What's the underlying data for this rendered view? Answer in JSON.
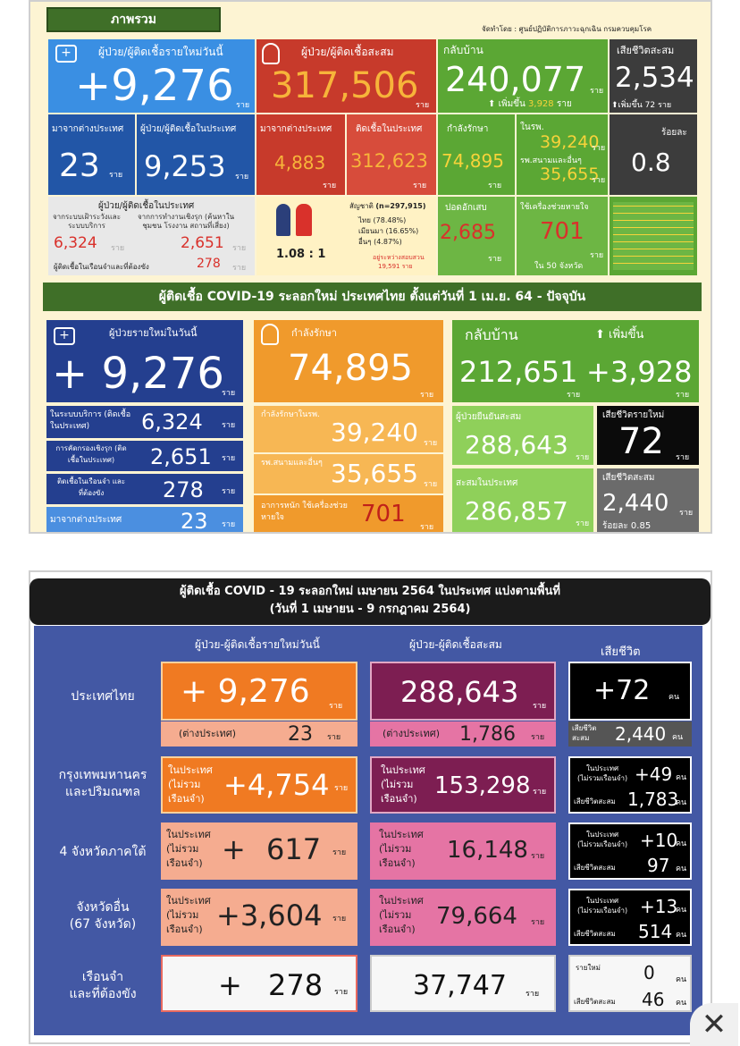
{
  "top": {
    "section_label": "ภาพรวม",
    "credit": "จัดทำโดย : ศูนย์ปฏิบัติการภาวะฉุกเฉิน กรมควบคุมโรค",
    "new_cases": {
      "label": "ผู้ป่วย/ผู้ติดเชื้อรายใหม่วันนี้",
      "value": "+9,276",
      "unit": "ราย"
    },
    "cumulative": {
      "label": "ผู้ป่วย/ผู้ติดเชื้อสะสม",
      "value": "317,506",
      "unit": "ราย"
    },
    "recovered": {
      "label": "กลับบ้าน",
      "value": "240,077",
      "unit": "ราย",
      "increase_label": "เพิ่มขึ้น",
      "increase": "3,928",
      "increase_unit": "ราย"
    },
    "deaths": {
      "label": "เสียชีวิตสะสม",
      "value": "2,534",
      "increase_label": "เพิ่มขึ้น",
      "increase": "72",
      "unit": "ราย"
    },
    "imported_new": {
      "label": "มาจากต่างประเทศ",
      "value": "23",
      "unit": "ราย"
    },
    "local_new": {
      "label": "ผู้ป่วย/ผู้ติดเชื้อในประเทศ",
      "value": "9,253",
      "unit": "ราย"
    },
    "imported_cum": {
      "label": "มาจากต่างประเทศ",
      "value": "4,883",
      "unit": "ราย"
    },
    "local_cum": {
      "label": "ติดเชื้อในประเทศ",
      "value": "312,623",
      "unit": "ราย"
    },
    "treating": {
      "label": "กำลังรักษา",
      "value": "74,895",
      "unit": "ราย"
    },
    "hospital": {
      "label": "ในรพ.",
      "value": "39,240",
      "unit": "ราย",
      "field_label": "รพ.สนามและอื่นๆ",
      "field_value": "35,655",
      "field_unit": "ราย"
    },
    "fatality": {
      "label": "ร้อยละ",
      "value": "0.8"
    },
    "local_detail": {
      "label": "ผู้ป่วย/ผู้ติดเชื้อในประเทศ",
      "sys_label": "จากระบบเฝ้าระวังและระบบบริการ",
      "sys_value": "6,324",
      "active_label": "จากการทำงานเชิงรุก (ค้นหาในชุมชน โรงงาน สถานที่เสี่ยง)",
      "active_value": "2,651",
      "prison_label": "ผู้ติดเชื้อในเรือนจำและที่ต้องขัง",
      "prison_value": "278",
      "unit": "ราย"
    },
    "ratio": {
      "value": "1.08 : 1"
    },
    "nationality": {
      "label": "สัญชาติ",
      "n": "(n=297,915)",
      "thai": "ไทย",
      "thai_pct": "(78.48%)",
      "myanmar": "เมียนมา",
      "myanmar_pct": "(16.65%)",
      "other": "อื่นๆ",
      "other_pct": "(4.87%)",
      "pending_label": "อยู่ระหว่างสอบสวน",
      "pending_value": "19,591 ราย"
    },
    "serious": {
      "label": "ปอดอักเสบ",
      "value": "2,685",
      "unit": "ราย"
    },
    "ventilator": {
      "label": "ใช้เครื่องช่วยหายใจ",
      "value": "701",
      "unit": "ราย",
      "provinces": "ใน 50 จังหวัด"
    }
  },
  "mid": {
    "banner": "ผู้ติดเชื้อ COVID-19 ระลอกใหม่ ประเทศไทย ตั้งแต่วันที่ 1 เม.ย. 64  - ปัจจุบัน",
    "new_label": "ผู้ป่วยรายใหม่ในวันนี้",
    "new_value": "+ 9,276",
    "unit": "ราย",
    "treat_label": "กำลังรักษา",
    "treat_value": "74,895",
    "rec_label": "กลับบ้าน",
    "rec_value": "212,651",
    "rec_inc_label": "เพิ่มขึ้น",
    "rec_inc": "+3,928",
    "sys_label": "ในระบบบริการ (ติดเชื้อในประเทศ)",
    "sys_value": "6,324",
    "active_label": "การคัดกรองเชิงรุก (ติดเชื้อในประเทศ)",
    "active_value": "2,651",
    "prison_label": "ติดเชื้อในเรือนจำ และที่ต้องขัง",
    "prison_value": "278",
    "imp_label": "มาจากต่างประเทศ",
    "imp_value": "23",
    "hosp_label": "กำลังรักษาในรพ.",
    "hosp_value": "39,240",
    "field_label": "รพ.สนามและอื่นๆ",
    "field_value": "35,655",
    "severe_label": "อาการหนัก ใช้เครื่องช่วยหายใจ",
    "severe_value": "701",
    "confirmed_label": "ผู้ป่วยยืนยันสะสม",
    "confirmed_value": "288,643",
    "localcum_label": "สะสมในประเทศ",
    "localcum_value": "286,857",
    "newdeath_label": "เสียชีวิตรายใหม่",
    "newdeath_value": "72",
    "cumdeath_label": "เสียชีวิตสะสม",
    "cumdeath_value": "2,440",
    "cumdeath_pct": "ร้อยละ  0.85"
  },
  "bottom": {
    "title1": "ผู้ติดเชื้อ COVID - 19 ระลอกใหม่ เมษายน 2564 ในประเทศ แบ่งตามพื้นที่",
    "title2": "(วันที่ 1 เมษายน - 9 กรกฎาคม 2564)",
    "col1": "ผู้ป่วย-ผู้ติดเชื้อรายใหม่วันนี้",
    "col2": "ผู้ป่วย-ผู้ติดเชื้อสะสม",
    "col3": "เสียชีวิต",
    "unit": "ราย",
    "unit_person": "คน",
    "local_label": "ในประเทศ",
    "excl_label1": "(ไม่รวม",
    "excl_label2": "เรือนจำ)",
    "excl_short": "(ไม่รวมเรือนจำ)",
    "abroad_label": "(ต่างประเทศ)",
    "cumdeath_label": "เสียชีวิตสะสม",
    "new_label": "รายใหม่",
    "death_cum_short1": "เสียชีวิต",
    "death_cum_short2": "สะสม",
    "rows": [
      {
        "name1": "ประเทศไทย",
        "name2": "",
        "new": "+ 9,276",
        "abroad_new": "23",
        "cum": "288,643",
        "abroad_cum": "1,786",
        "death": "+72",
        "death_cum": "2,440"
      },
      {
        "name1": "กรุงเทพมหานคร",
        "name2": "และปริมณฑล",
        "new": "+4,754",
        "cum": "153,298",
        "death": "+49",
        "death_cum": "1,783"
      },
      {
        "name1": "4 จังหวัดภาคใต้",
        "name2": "",
        "new": "617",
        "cum": "16,148",
        "death": "+10",
        "death_cum": "97"
      },
      {
        "name1": "จังหวัดอื่น",
        "name2": "(67 จังหวัด)",
        "new": "+3,604",
        "cum": "79,664",
        "death": "+13",
        "death_cum": "514"
      },
      {
        "name1": "เรือนจำ",
        "name2": "และที่ต้องขัง",
        "new": "278",
        "cum": "37,747",
        "death": "0",
        "death_cum": "46"
      }
    ]
  },
  "close_icon": "close-icon"
}
